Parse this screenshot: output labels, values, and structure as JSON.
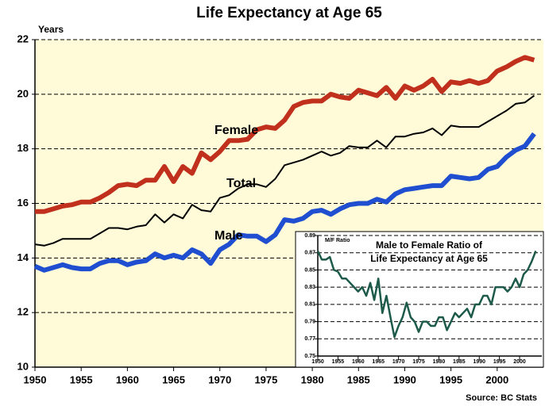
{
  "chart_data": [
    {
      "type": "line",
      "title": "Life Expectancy at Age 65",
      "y_label": "Years",
      "source": "Source: BC Stats",
      "x": [
        1950,
        1951,
        1952,
        1953,
        1954,
        1955,
        1956,
        1957,
        1958,
        1959,
        1960,
        1961,
        1962,
        1963,
        1964,
        1965,
        1966,
        1967,
        1968,
        1969,
        1970,
        1971,
        1972,
        1973,
        1974,
        1975,
        1976,
        1977,
        1978,
        1979,
        1980,
        1981,
        1982,
        1983,
        1984,
        1985,
        1986,
        1987,
        1988,
        1989,
        1990,
        1991,
        1992,
        1993,
        1994,
        1995,
        1996,
        1997,
        1998,
        1999,
        2000,
        2001,
        2002,
        2003,
        2004
      ],
      "series": [
        {
          "name": "Female",
          "color": "#c0301c",
          "label_color": "#c0301c",
          "line_width": 6,
          "values": [
            15.7,
            15.7,
            15.8,
            15.9,
            15.95,
            16.05,
            16.05,
            16.2,
            16.4,
            16.65,
            16.7,
            16.65,
            16.85,
            16.85,
            17.35,
            16.8,
            17.35,
            17.1,
            17.85,
            17.6,
            17.9,
            18.3,
            18.3,
            18.35,
            18.7,
            18.8,
            18.75,
            19.05,
            19.55,
            19.7,
            19.75,
            19.75,
            20.0,
            19.9,
            19.85,
            20.15,
            20.05,
            19.95,
            20.25,
            19.85,
            20.3,
            20.15,
            20.3,
            20.55,
            20.1,
            20.45,
            20.4,
            20.5,
            20.4,
            20.5,
            20.85,
            21.0,
            21.2,
            21.35,
            21.25
          ]
        },
        {
          "name": "Total",
          "color": "#000000",
          "label_color": "#1d4b3c",
          "line_width": 2,
          "values": [
            14.5,
            14.45,
            14.55,
            14.7,
            14.7,
            14.7,
            14.7,
            14.9,
            15.1,
            15.1,
            15.05,
            15.15,
            15.2,
            15.6,
            15.3,
            15.6,
            15.45,
            15.95,
            15.75,
            15.7,
            16.2,
            16.3,
            16.55,
            16.7,
            16.7,
            16.6,
            16.9,
            17.4,
            17.5,
            17.6,
            17.75,
            17.9,
            17.75,
            17.85,
            18.1,
            18.05,
            18.05,
            18.3,
            18.05,
            18.45,
            18.45,
            18.55,
            18.6,
            18.75,
            18.5,
            18.85,
            18.8,
            18.8,
            18.8,
            19.0,
            19.2,
            19.4,
            19.65,
            19.7,
            19.95
          ]
        },
        {
          "name": "Male",
          "color": "#1f4fd0",
          "label_color": "#1f4fd0",
          "line_width": 6,
          "values": [
            13.7,
            13.55,
            13.65,
            13.75,
            13.65,
            13.6,
            13.6,
            13.8,
            13.9,
            13.9,
            13.75,
            13.85,
            13.9,
            14.15,
            14.0,
            14.1,
            14.0,
            14.3,
            14.15,
            13.8,
            14.3,
            14.5,
            14.85,
            14.8,
            14.8,
            14.6,
            14.85,
            15.4,
            15.35,
            15.45,
            15.7,
            15.75,
            15.6,
            15.8,
            15.95,
            16.0,
            16.0,
            16.15,
            16.05,
            16.35,
            16.5,
            16.55,
            16.6,
            16.65,
            16.65,
            17.0,
            16.95,
            16.9,
            16.95,
            17.25,
            17.35,
            17.7,
            17.95,
            18.1,
            18.55
          ]
        }
      ],
      "xlim": [
        1950,
        2005
      ],
      "xticks": [
        1950,
        1955,
        1960,
        1965,
        1970,
        1975,
        1980,
        1985,
        1990,
        1995,
        2000
      ],
      "ylim": [
        10,
        22
      ],
      "yticks": [
        10,
        12,
        14,
        16,
        18,
        20,
        22
      ],
      "grid": true,
      "background": "#fffbd8"
    },
    {
      "type": "line",
      "title": [
        "Male to Female Ratio of",
        "Life Expectancy at Age 65"
      ],
      "y_label": "M/F Ratio",
      "x": [
        1950,
        1951,
        1952,
        1953,
        1954,
        1955,
        1956,
        1957,
        1958,
        1959,
        1960,
        1961,
        1962,
        1963,
        1964,
        1965,
        1966,
        1967,
        1968,
        1969,
        1970,
        1971,
        1972,
        1973,
        1974,
        1975,
        1976,
        1977,
        1978,
        1979,
        1980,
        1981,
        1982,
        1983,
        1984,
        1985,
        1986,
        1987,
        1988,
        1989,
        1990,
        1991,
        1992,
        1993,
        1994,
        1995,
        1996,
        1997,
        1998,
        1999,
        2000,
        2001,
        2002,
        2003,
        2004
      ],
      "series": [
        {
          "name": null,
          "color": "#1d5a4a",
          "line_width": 2.5,
          "values": [
            0.872,
            0.862,
            0.862,
            0.865,
            0.85,
            0.848,
            0.84,
            0.84,
            0.835,
            0.83,
            0.825,
            0.83,
            0.82,
            0.835,
            0.815,
            0.84,
            0.8,
            0.82,
            0.795,
            0.772,
            0.785,
            0.795,
            0.812,
            0.795,
            0.79,
            0.778,
            0.79,
            0.79,
            0.785,
            0.785,
            0.795,
            0.795,
            0.78,
            0.79,
            0.8,
            0.795,
            0.8,
            0.805,
            0.795,
            0.81,
            0.81,
            0.82,
            0.82,
            0.81,
            0.83,
            0.83,
            0.83,
            0.825,
            0.83,
            0.84,
            0.83,
            0.845,
            0.85,
            0.86,
            0.872
          ]
        }
      ],
      "xlim": [
        1950,
        2005.5
      ],
      "xticks": [
        1950,
        1955,
        1960,
        1965,
        1970,
        1975,
        1980,
        1985,
        1990,
        1995,
        2000
      ],
      "ylim": [
        0.75,
        0.89
      ],
      "yticks": [
        0.75,
        0.77,
        0.79,
        0.81,
        0.83,
        0.85,
        0.87,
        0.89
      ],
      "grid": true,
      "background": "#ffffff"
    }
  ]
}
